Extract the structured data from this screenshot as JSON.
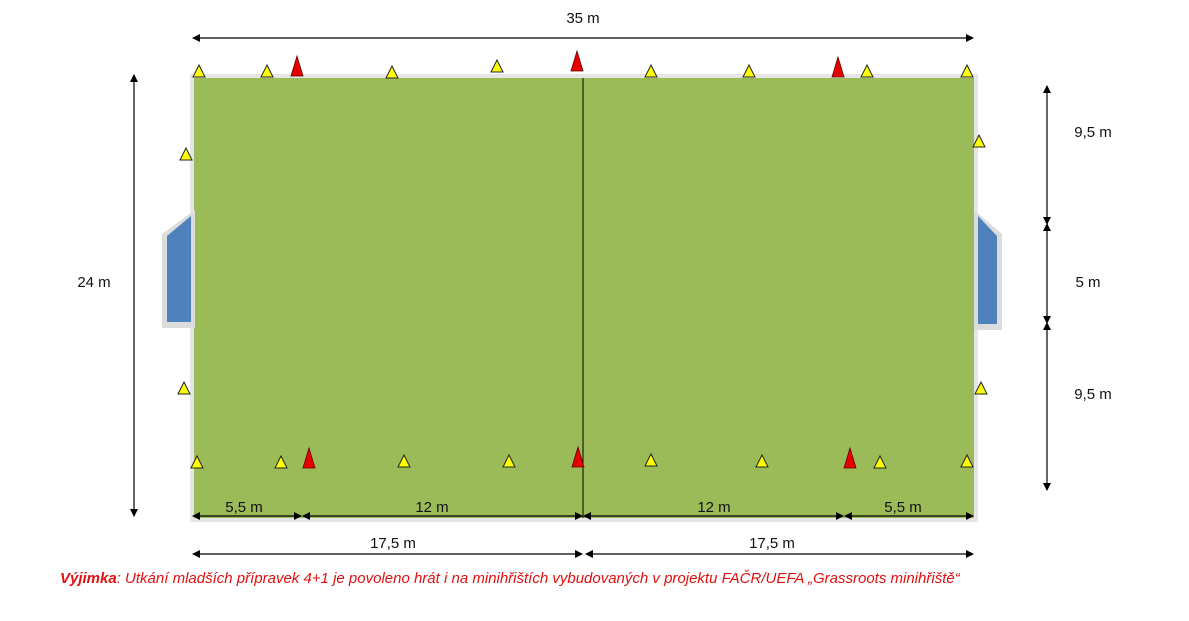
{
  "colors": {
    "pitch": "#9bbb59",
    "pitch_border": "#e6e6e6",
    "goal": "#4f81bd",
    "cone_small": "#ffff00",
    "cone_large": "#e60000",
    "footnote": "#e01010"
  },
  "dimensions": {
    "width_total": "35 m",
    "height_total": "24 m",
    "right_top": "9,5 m",
    "right_middle": "5 m",
    "right_bottom": "9,5 m",
    "inner_left_1": "5,5 m",
    "inner_left_2": "12 m",
    "inner_right_1": "12 m",
    "inner_right_2": "5,5 m",
    "half_left": "17,5 m",
    "half_right": "17,5 m"
  },
  "icons": {
    "small_marker": "yellow-cone-icon",
    "large_marker": "red-cone-icon",
    "goal": "goal-icon"
  },
  "footnote": {
    "bold": "Výjimka",
    "text": ": Utkání mladších přípravek 4+1 je povoleno hrát i na minihřištích vybudovaných v projektu FAČR/UEFA „Grassroots minihřiště“"
  }
}
